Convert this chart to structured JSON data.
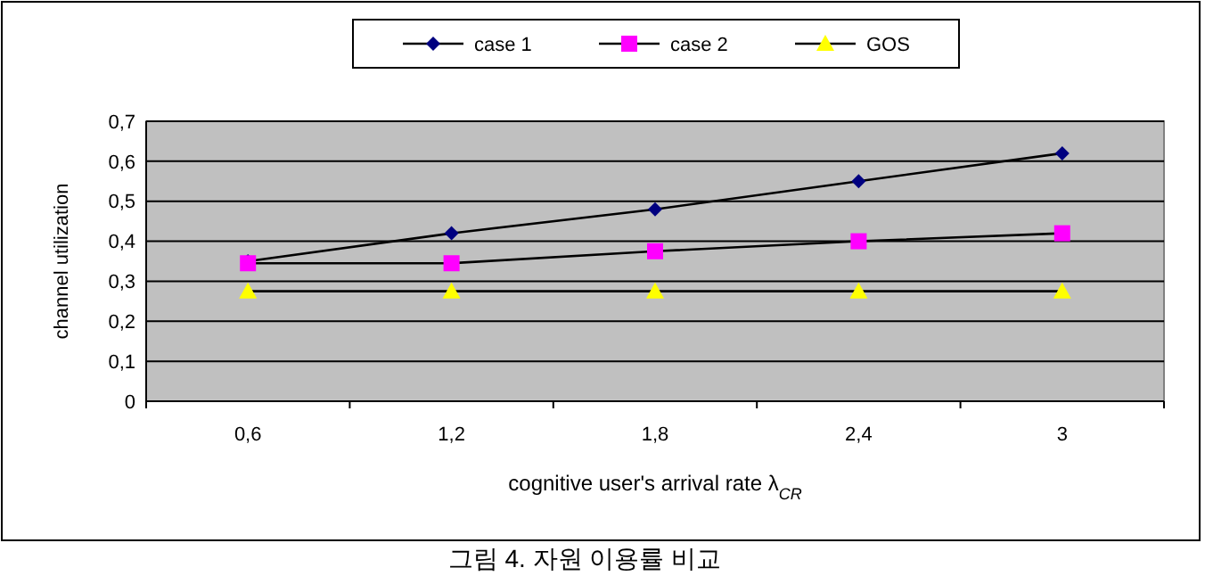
{
  "chart_data": {
    "type": "line",
    "xlabel": "cognitive user's arrival rate λ$_{CR}$",
    "ylabel": "channel utilization",
    "categories": [
      "0,6",
      "1,2",
      "1,8",
      "2,4",
      "3"
    ],
    "series": [
      {
        "name": "case 1",
        "color": "#000080",
        "marker": "diamond",
        "values": [
          0.35,
          0.42,
          0.48,
          0.55,
          0.62
        ]
      },
      {
        "name": "case 2",
        "color": "#ff00ff",
        "marker": "square",
        "values": [
          0.345,
          0.345,
          0.375,
          0.4,
          0.42
        ]
      },
      {
        "name": "GOS",
        "color": "#ffff00",
        "marker": "triangle",
        "values": [
          0.275,
          0.275,
          0.275,
          0.275,
          0.275
        ]
      }
    ],
    "ylim": [
      0,
      0.7
    ],
    "yticks": [
      {
        "value": 0,
        "label": "0"
      },
      {
        "value": 0.1,
        "label": "0,1"
      },
      {
        "value": 0.2,
        "label": "0,2"
      },
      {
        "value": 0.3,
        "label": "0,3"
      },
      {
        "value": 0.4,
        "label": "0,4"
      },
      {
        "value": 0.5,
        "label": "0,5"
      },
      {
        "value": 0.6,
        "label": "0,6"
      },
      {
        "value": 0.7,
        "label": "0,7"
      }
    ],
    "grid": "y",
    "legend": "top",
    "line_style": "solid",
    "annotations": [
      "그림 4. 자원 이용률 비교"
    ]
  }
}
